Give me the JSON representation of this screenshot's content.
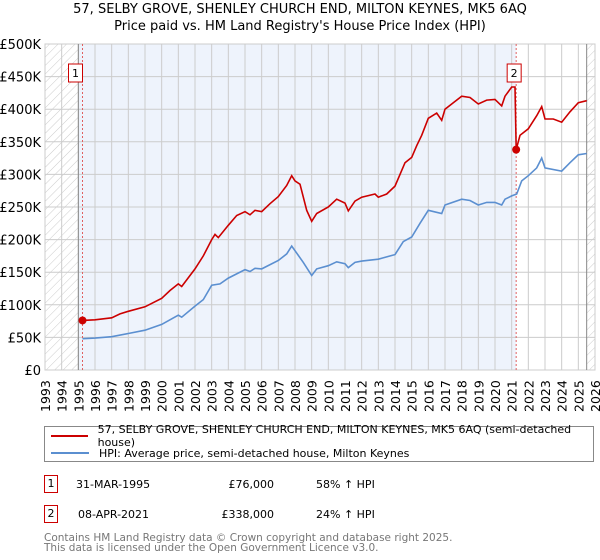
{
  "title_line1": "57, SELBY GROVE, SHENLEY CHURCH END, MILTON KEYNES, MK5 6AQ",
  "title_line2": "Price paid vs. HM Land Registry's House Price Index (HPI)",
  "chart_data": {
    "type": "line",
    "title": "57, SELBY GROVE, SHENLEY CHURCH END, MILTON KEYNES, MK5 6AQ — Price paid vs. HM Land Registry's House Price Index (HPI)",
    "xlim": [
      1993,
      2026
    ],
    "ylim": [
      0,
      500000
    ],
    "x_ticks": [
      "1993",
      "1994",
      "1995",
      "1996",
      "1997",
      "1998",
      "1999",
      "2000",
      "2001",
      "2002",
      "2003",
      "2004",
      "2005",
      "2006",
      "2007",
      "2008",
      "2009",
      "2010",
      "2011",
      "2012",
      "2013",
      "2014",
      "2015",
      "2016",
      "2017",
      "2018",
      "2019",
      "2020",
      "2021",
      "2022",
      "2023",
      "2024",
      "2025",
      "2026"
    ],
    "y_ticks": [
      {
        "v": 0,
        "label": "£0"
      },
      {
        "v": 50000,
        "label": "£50K"
      },
      {
        "v": 100000,
        "label": "£100K"
      },
      {
        "v": 150000,
        "label": "£150K"
      },
      {
        "v": 200000,
        "label": "£200K"
      },
      {
        "v": 250000,
        "label": "£250K"
      },
      {
        "v": 300000,
        "label": "£300K"
      },
      {
        "v": 350000,
        "label": "£350K"
      },
      {
        "v": 400000,
        "label": "£400K"
      },
      {
        "v": 450000,
        "label": "£450K"
      },
      {
        "v": 500000,
        "label": "£500K"
      }
    ],
    "grid": true,
    "series": [
      {
        "name": "57, SELBY GROVE, SHENLEY CHURCH END, MILTON KEYNES, MK5 6AQ (semi-detached house)",
        "color": "#cc0000",
        "x": [
          1995.25,
          1996,
          1997,
          1997.5,
          1998,
          1999,
          2000,
          2000.5,
          2001,
          2001.2,
          2001.7,
          2002,
          2002.5,
          2003,
          2003.2,
          2003.4,
          2004,
          2004.5,
          2005,
          2005.3,
          2005.6,
          2006,
          2006.5,
          2007,
          2007.5,
          2007.8,
          2008,
          2008.3,
          2008.7,
          2009,
          2009.3,
          2010,
          2010.5,
          2011,
          2011.2,
          2011.6,
          2012,
          2012.8,
          2013,
          2013.5,
          2014,
          2014.3,
          2014.6,
          2015,
          2015.3,
          2015.6,
          2016,
          2016.5,
          2016.8,
          2017,
          2017.5,
          2018,
          2018.5,
          2019,
          2019.5,
          2020,
          2020.4,
          2020.6,
          2021,
          2021.2,
          2021.27,
          2021.5,
          2022,
          2022.5,
          2022.8,
          2023,
          2023.5,
          2024,
          2024.5,
          2025,
          2025.5
        ],
        "y": [
          76000,
          77000,
          80000,
          86000,
          90000,
          97000,
          110000,
          122000,
          132000,
          128000,
          145000,
          155000,
          175000,
          200000,
          208000,
          203000,
          222000,
          237000,
          243000,
          238000,
          245000,
          243000,
          255000,
          266000,
          283000,
          298000,
          290000,
          285000,
          245000,
          228000,
          240000,
          250000,
          262000,
          256000,
          244000,
          259000,
          265000,
          270000,
          265000,
          270000,
          282000,
          300000,
          318000,
          326000,
          344000,
          360000,
          386000,
          394000,
          383000,
          400000,
          410000,
          420000,
          418000,
          408000,
          414000,
          415000,
          405000,
          420000,
          434000,
          434000,
          338000,
          360000,
          370000,
          390000,
          404000,
          385000,
          385000,
          380000,
          396000,
          410000,
          413000
        ]
      },
      {
        "name": "HPI: Average price, semi-detached house, Milton Keynes",
        "color": "#5b8fd0",
        "x": [
          1995.25,
          1996,
          1997,
          1998,
          1999,
          2000,
          2001,
          2001.2,
          2002,
          2002.5,
          2003,
          2003.5,
          2004,
          2005,
          2005.3,
          2005.6,
          2006,
          2007,
          2007.5,
          2007.8,
          2008,
          2008.5,
          2009,
          2009.3,
          2010,
          2010.5,
          2011,
          2011.2,
          2011.6,
          2012,
          2013,
          2014,
          2014.5,
          2015,
          2015.5,
          2016,
          2016.8,
          2017,
          2018,
          2018.5,
          2019,
          2019.5,
          2020,
          2020.4,
          2020.6,
          2021,
          2021.3,
          2021.6,
          2022,
          2022.5,
          2022.8,
          2023,
          2024,
          2024.5,
          2025,
          2025.5
        ],
        "y": [
          48000,
          49000,
          51000,
          56000,
          61000,
          70000,
          84000,
          81000,
          98000,
          108000,
          130000,
          132000,
          141000,
          154000,
          151000,
          156000,
          155000,
          168000,
          178000,
          190000,
          183000,
          165000,
          145000,
          155000,
          160000,
          166000,
          163000,
          157000,
          165000,
          167000,
          170000,
          177000,
          197000,
          204000,
          225000,
          245000,
          240000,
          253000,
          262000,
          260000,
          253000,
          257000,
          257000,
          253000,
          262000,
          267000,
          270000,
          290000,
          298000,
          310000,
          325000,
          310000,
          305000,
          318000,
          330000,
          332000
        ]
      }
    ],
    "sales": [
      {
        "label": "1",
        "x": 1995.25,
        "y": 76000
      },
      {
        "label": "2",
        "x": 2021.27,
        "y": 338000
      }
    ],
    "legend_position": "bottom"
  },
  "legend": {
    "property": "57, SELBY GROVE, SHENLEY CHURCH END, MILTON KEYNES, MK5 6AQ (semi-detached house)",
    "hpi": "HPI: Average price, semi-detached house, Milton Keynes"
  },
  "transactions": [
    {
      "num": "1",
      "date": "31-MAR-1995",
      "price": "£76,000",
      "hpi": "58% ↑ HPI"
    },
    {
      "num": "2",
      "date": "08-APR-2021",
      "price": "£338,000",
      "hpi": "24% ↑ HPI"
    }
  ],
  "footer": {
    "line1": "Contains HM Land Registry data © Crown copyright and database right 2025.",
    "line2": "This data is licensed under the Open Government Licence v3.0."
  }
}
